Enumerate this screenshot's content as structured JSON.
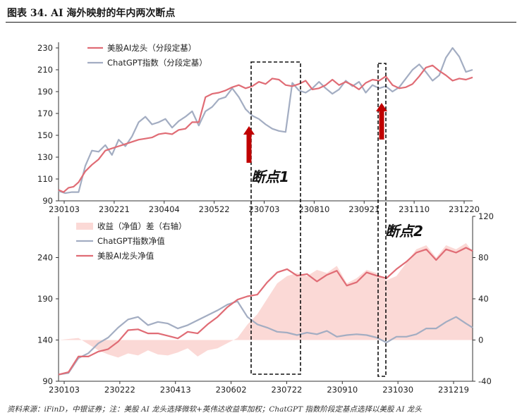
{
  "page": {
    "title": "图表 34. AI 海外映射的年内两次断点",
    "footer": "资料来源：iFinD，中银证券；注：美股 AI 龙头选择微软+英伟达收益率加权；ChatGPT 指数阶段定基点选择以美股 AI 龙头"
  },
  "colors": {
    "us_ai": "#e06c75",
    "chatgpt": "#a3adc2",
    "spread_fill": "#fbd9d6",
    "arrow": "#c00000"
  },
  "annotations": [
    {
      "label": "断点1"
    },
    {
      "label": "断点2"
    }
  ],
  "chart_data": [
    {
      "type": "line",
      "x_ticks": [
        "230103",
        "230221",
        "230404",
        "230522",
        "230703",
        "230810",
        "230921",
        "231110",
        "231220"
      ],
      "y_ticks": [
        90,
        110,
        130,
        150,
        170,
        190,
        210,
        230
      ],
      "ylim": [
        90,
        230
      ],
      "series": [
        {
          "name": "美股AI龙头（分段定基）",
          "color": "#e06c75",
          "x": [
            0,
            3,
            6,
            9,
            12,
            16,
            20,
            24,
            28,
            32,
            36,
            40,
            44,
            48,
            52,
            56,
            60,
            64,
            68,
            72,
            76,
            80,
            84,
            88,
            92,
            96,
            100,
            104,
            108,
            112,
            116,
            120,
            124,
            128,
            132,
            136,
            140,
            144,
            148,
            152,
            156,
            160,
            164,
            168,
            172,
            176,
            180,
            184,
            188,
            192,
            196,
            200,
            204,
            208,
            212,
            216,
            220,
            224,
            228,
            232,
            236,
            240,
            244,
            248
          ],
          "values": [
            100,
            98,
            102,
            103,
            107,
            117,
            123,
            128,
            136,
            138,
            140,
            142,
            144,
            146,
            147,
            148,
            151,
            152,
            151,
            155,
            156,
            162,
            162,
            185,
            188,
            189,
            191,
            194,
            196,
            193,
            195,
            199,
            197,
            202,
            201,
            196,
            195,
            197,
            200,
            192,
            193,
            196,
            201,
            196,
            199,
            196,
            192,
            198,
            201,
            200,
            204,
            196,
            193,
            194,
            197,
            204,
            212,
            214,
            209,
            205,
            200,
            202,
            201,
            203
          ]
        },
        {
          "name": "ChatGPT指数（分段定基）",
          "color": "#a3adc2",
          "x": [
            0,
            4,
            8,
            12,
            16,
            20,
            24,
            28,
            32,
            36,
            40,
            44,
            48,
            52,
            56,
            60,
            64,
            68,
            72,
            76,
            80,
            84,
            88,
            92,
            96,
            100,
            104,
            108,
            112,
            116,
            120,
            124,
            128,
            132,
            136,
            140,
            144,
            148,
            152,
            156,
            160,
            164,
            168,
            172,
            176,
            180,
            184,
            188,
            192,
            196,
            200,
            204,
            208,
            212,
            216,
            220,
            224,
            228,
            232,
            236,
            240,
            244,
            248
          ],
          "values": [
            99,
            97,
            98,
            98,
            122,
            136,
            135,
            141,
            132,
            146,
            140,
            149,
            162,
            167,
            160,
            162,
            165,
            157,
            163,
            167,
            172,
            159,
            172,
            176,
            183,
            185,
            193,
            185,
            174,
            168,
            165,
            160,
            156,
            154,
            153,
            198,
            191,
            189,
            193,
            199,
            193,
            188,
            192,
            200,
            195,
            199,
            189,
            196,
            193,
            195,
            190,
            194,
            202,
            210,
            215,
            208,
            200,
            205,
            221,
            230,
            222,
            208,
            210
          ]
        }
      ]
    },
    {
      "type": "line",
      "x_ticks": [
        "230103",
        "230222",
        "230413",
        "230602",
        "230722",
        "230910",
        "231030",
        "231219"
      ],
      "y_ticks_left": [
        90,
        140,
        190,
        240
      ],
      "y_ticks_right": [
        -40,
        0,
        40,
        80,
        120
      ],
      "ylim_left": [
        90,
        290
      ],
      "ylim_right": [
        -40,
        120
      ],
      "series": [
        {
          "name": "收益（净值）差（右轴）",
          "color": "#fbd9d6",
          "type": "area",
          "axis": "right",
          "x": [
            0,
            6,
            12,
            18,
            24,
            30,
            36,
            42,
            48,
            54,
            60,
            66,
            72,
            78,
            84,
            90,
            96,
            102,
            108,
            114,
            120,
            126,
            132,
            138,
            144,
            150,
            156,
            162,
            168,
            174,
            180,
            186,
            192,
            198,
            204,
            210,
            216,
            222,
            228,
            234,
            240,
            246,
            250
          ],
          "values": [
            0,
            1,
            2,
            -4,
            -10,
            -14,
            -17,
            -13,
            -15,
            -10,
            -14,
            -15,
            -12,
            -8,
            -16,
            -10,
            -8,
            -3,
            2,
            15,
            25,
            40,
            55,
            62,
            65,
            62,
            68,
            65,
            72,
            55,
            60,
            68,
            65,
            58,
            62,
            75,
            88,
            92,
            80,
            92,
            88,
            94,
            86
          ]
        },
        {
          "name": "ChatGPT指数净值",
          "color": "#a3adc2",
          "axis": "left",
          "x": [
            0,
            6,
            12,
            18,
            24,
            30,
            36,
            42,
            48,
            54,
            60,
            66,
            72,
            78,
            84,
            90,
            96,
            102,
            108,
            114,
            120,
            126,
            132,
            138,
            144,
            150,
            156,
            162,
            168,
            174,
            180,
            186,
            192,
            198,
            204,
            210,
            216,
            222,
            228,
            234,
            240,
            246,
            250
          ],
          "values": [
            98,
            100,
            118,
            124,
            136,
            143,
            155,
            165,
            168,
            158,
            162,
            160,
            154,
            158,
            164,
            170,
            176,
            183,
            187,
            168,
            159,
            155,
            150,
            149,
            146,
            149,
            147,
            151,
            144,
            146,
            147,
            146,
            143,
            137,
            144,
            144,
            147,
            154,
            154,
            162,
            168,
            160,
            155
          ]
        },
        {
          "name": "美股AI龙头净值",
          "color": "#e06c75",
          "axis": "left",
          "x": [
            0,
            6,
            12,
            18,
            24,
            30,
            36,
            42,
            48,
            54,
            60,
            66,
            72,
            78,
            84,
            90,
            96,
            102,
            108,
            114,
            120,
            126,
            132,
            138,
            144,
            150,
            156,
            162,
            168,
            174,
            180,
            186,
            192,
            198,
            204,
            210,
            216,
            222,
            228,
            234,
            240,
            246,
            250
          ],
          "values": [
            98,
            101,
            120,
            120,
            126,
            129,
            138,
            152,
            153,
            148,
            148,
            145,
            142,
            150,
            148,
            159,
            168,
            180,
            189,
            193,
            195,
            210,
            222,
            226,
            218,
            220,
            211,
            219,
            224,
            206,
            210,
            222,
            218,
            215,
            226,
            235,
            246,
            250,
            237,
            250,
            246,
            252,
            248
          ]
        }
      ]
    }
  ]
}
